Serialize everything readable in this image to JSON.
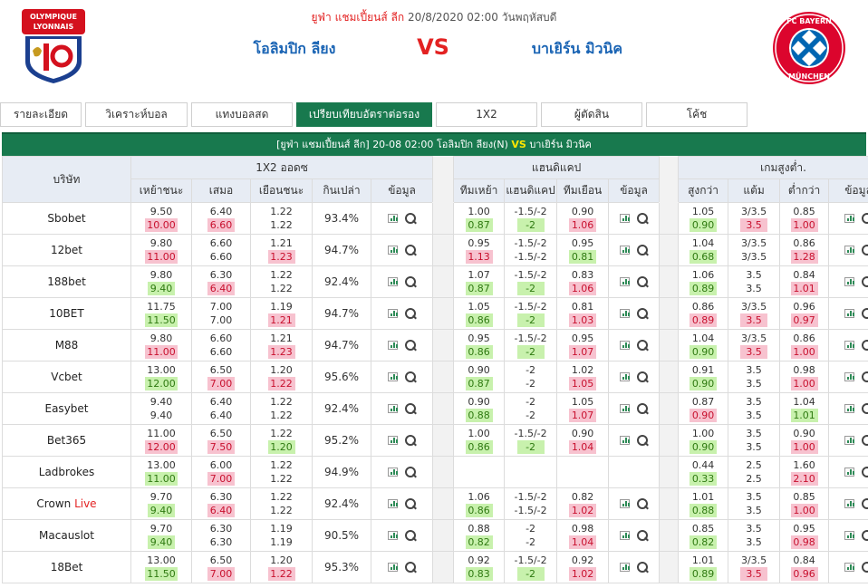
{
  "header": {
    "competition": "ยูฟ่า แชมเปี้ยนส์ ลีก",
    "datetime": "20/8/2020 02:00",
    "weekday": "วันพฤหัสบดี",
    "home_team": "โอลิมปิก ลียง",
    "vs": "VS",
    "away_team": "บาเยิร์น มิวนิค",
    "home_logo_text": "OLYMPIQUE LYONNAIS",
    "away_logo_text": "FC BAYERN MÜNCHEN"
  },
  "tabs": [
    {
      "label": "รายละเอียด",
      "active": false
    },
    {
      "label": "วิเคราะห์บอล",
      "active": false
    },
    {
      "label": "แทงบอลสด",
      "active": false
    },
    {
      "label": "เปรียบเทียบอัตราต่อรอง",
      "active": true
    },
    {
      "label": "1X2",
      "active": false
    },
    {
      "label": "ผู้ตัดสิน",
      "active": false
    },
    {
      "label": "โค้ช",
      "active": false
    }
  ],
  "table": {
    "title": {
      "competition": "[ยูฟ่า แชมเปี้ยนส์ ลีก]",
      "datetime": "20-08 02:00",
      "home": "โอลิมปิก ลียง(N)",
      "vs": "VS",
      "away": "บาเยิร์น มิวนิค"
    },
    "headers": {
      "company": "บริษัท",
      "group_1x2": "1X2 ออดซ",
      "group_handicap": "แฮนดิแคป",
      "group_ou": "เกมสูงต่ำ.",
      "home_win": "เหย้าชนะ",
      "draw": "เสมอ",
      "away_win": "เยือนชนะ",
      "payout": "กินเปล่า",
      "info": "ข้อมูล",
      "home_team": "ทีมเหย้า",
      "handicap": "แฮนดิแคป",
      "away_team": "ทีมเยือน",
      "over": "สูงกว่า",
      "goals": "แต้ม",
      "under": "ต่ำกว่า"
    },
    "rows": [
      {
        "company": "Sbobet",
        "live": "",
        "x12": [
          [
            "9.50",
            "10.00",
            "up"
          ],
          [
            "6.40",
            "6.60",
            "up"
          ],
          [
            "1.22",
            "1.22",
            ""
          ]
        ],
        "payout": "93.4%",
        "hdp": [
          [
            "1.00",
            "0.87",
            "down"
          ],
          [
            "-1.5/-2",
            "-2",
            "down"
          ],
          [
            "0.90",
            "1.06",
            "up"
          ]
        ],
        "ou": [
          [
            "1.05",
            "0.90",
            "down"
          ],
          [
            "3/3.5",
            "3.5",
            "up"
          ],
          [
            "0.85",
            "1.00",
            "up"
          ]
        ]
      },
      {
        "company": "12bet",
        "live": "",
        "x12": [
          [
            "9.80",
            "11.00",
            "up"
          ],
          [
            "6.60",
            "6.60",
            ""
          ],
          [
            "1.21",
            "1.23",
            "up"
          ]
        ],
        "payout": "94.7%",
        "hdp": [
          [
            "0.95",
            "1.13",
            "up"
          ],
          [
            "-1.5/-2",
            "-1.5/-2",
            ""
          ],
          [
            "0.95",
            "0.81",
            "down"
          ]
        ],
        "ou": [
          [
            "1.04",
            "0.68",
            "down"
          ],
          [
            "3/3.5",
            "3/3.5",
            ""
          ],
          [
            "0.86",
            "1.28",
            "up"
          ]
        ]
      },
      {
        "company": "188bet",
        "live": "",
        "x12": [
          [
            "9.80",
            "9.40",
            "down"
          ],
          [
            "6.30",
            "6.40",
            "up"
          ],
          [
            "1.22",
            "1.22",
            ""
          ]
        ],
        "payout": "92.4%",
        "hdp": [
          [
            "1.07",
            "0.87",
            "down"
          ],
          [
            "-1.5/-2",
            "-2",
            "down"
          ],
          [
            "0.83",
            "1.06",
            "up"
          ]
        ],
        "ou": [
          [
            "1.06",
            "0.89",
            "down"
          ],
          [
            "3.5",
            "3.5",
            ""
          ],
          [
            "0.84",
            "1.01",
            "up"
          ]
        ]
      },
      {
        "company": "10BET",
        "live": "",
        "x12": [
          [
            "11.75",
            "11.50",
            "down"
          ],
          [
            "7.00",
            "7.00",
            ""
          ],
          [
            "1.19",
            "1.21",
            "up"
          ]
        ],
        "payout": "94.7%",
        "hdp": [
          [
            "1.05",
            "0.86",
            "down"
          ],
          [
            "-1.5/-2",
            "-2",
            "down"
          ],
          [
            "0.81",
            "1.03",
            "up"
          ]
        ],
        "ou": [
          [
            "0.86",
            "0.89",
            "up"
          ],
          [
            "3/3.5",
            "3.5",
            "up"
          ],
          [
            "0.96",
            "0.97",
            "up"
          ]
        ]
      },
      {
        "company": "M88",
        "live": "",
        "x12": [
          [
            "9.80",
            "11.00",
            "up"
          ],
          [
            "6.60",
            "6.60",
            ""
          ],
          [
            "1.21",
            "1.23",
            "up"
          ]
        ],
        "payout": "94.7%",
        "hdp": [
          [
            "0.95",
            "0.86",
            "down"
          ],
          [
            "-1.5/-2",
            "-2",
            "down"
          ],
          [
            "0.95",
            "1.07",
            "up"
          ]
        ],
        "ou": [
          [
            "1.04",
            "0.90",
            "down"
          ],
          [
            "3/3.5",
            "3.5",
            "up"
          ],
          [
            "0.86",
            "1.00",
            "up"
          ]
        ]
      },
      {
        "company": "Vcbet",
        "live": "",
        "x12": [
          [
            "13.00",
            "12.00",
            "down"
          ],
          [
            "6.50",
            "7.00",
            "up"
          ],
          [
            "1.20",
            "1.22",
            "up"
          ]
        ],
        "payout": "95.6%",
        "hdp": [
          [
            "0.90",
            "0.87",
            "down"
          ],
          [
            "-2",
            "-2",
            ""
          ],
          [
            "1.02",
            "1.05",
            "up"
          ]
        ],
        "ou": [
          [
            "0.91",
            "0.90",
            "down"
          ],
          [
            "3.5",
            "3.5",
            ""
          ],
          [
            "0.98",
            "1.00",
            "up"
          ]
        ]
      },
      {
        "company": "Easybet",
        "live": "",
        "x12": [
          [
            "9.40",
            "9.40",
            ""
          ],
          [
            "6.40",
            "6.40",
            ""
          ],
          [
            "1.22",
            "1.22",
            ""
          ]
        ],
        "payout": "92.4%",
        "hdp": [
          [
            "0.90",
            "0.88",
            "down"
          ],
          [
            "-2",
            "-2",
            ""
          ],
          [
            "1.05",
            "1.07",
            "up"
          ]
        ],
        "ou": [
          [
            "0.87",
            "0.90",
            "up"
          ],
          [
            "3.5",
            "3.5",
            ""
          ],
          [
            "1.04",
            "1.01",
            "down"
          ]
        ]
      },
      {
        "company": "Bet365",
        "live": "",
        "x12": [
          [
            "11.00",
            "12.00",
            "up"
          ],
          [
            "6.50",
            "7.50",
            "up"
          ],
          [
            "1.22",
            "1.20",
            "down"
          ]
        ],
        "payout": "95.2%",
        "hdp": [
          [
            "1.00",
            "0.86",
            "down"
          ],
          [
            "-1.5/-2",
            "-2",
            "down"
          ],
          [
            "0.90",
            "1.04",
            "up"
          ]
        ],
        "ou": [
          [
            "1.00",
            "0.90",
            "down"
          ],
          [
            "3.5",
            "3.5",
            ""
          ],
          [
            "0.90",
            "1.00",
            "up"
          ]
        ]
      },
      {
        "company": "Ladbrokes",
        "live": "",
        "x12": [
          [
            "13.00",
            "11.00",
            "down"
          ],
          [
            "6.00",
            "7.00",
            "up"
          ],
          [
            "1.22",
            "1.22",
            ""
          ]
        ],
        "payout": "94.9%",
        "hdp": null,
        "ou": [
          [
            "0.44",
            "0.33",
            "down"
          ],
          [
            "2.5",
            "2.5",
            ""
          ],
          [
            "1.60",
            "2.10",
            "up"
          ]
        ]
      },
      {
        "company": "Crown",
        "live": "Live",
        "x12": [
          [
            "9.70",
            "9.40",
            "down"
          ],
          [
            "6.30",
            "6.40",
            "up"
          ],
          [
            "1.22",
            "1.22",
            ""
          ]
        ],
        "payout": "92.4%",
        "hdp": [
          [
            "1.06",
            "0.86",
            "down"
          ],
          [
            "-1.5/-2",
            "-1.5/-2",
            ""
          ],
          [
            "0.82",
            "1.02",
            "up"
          ]
        ],
        "ou": [
          [
            "1.01",
            "0.88",
            "down"
          ],
          [
            "3.5",
            "3.5",
            ""
          ],
          [
            "0.85",
            "1.00",
            "up"
          ]
        ]
      },
      {
        "company": "Macauslot",
        "live": "",
        "x12": [
          [
            "9.70",
            "9.40",
            "down"
          ],
          [
            "6.30",
            "6.30",
            ""
          ],
          [
            "1.19",
            "1.19",
            ""
          ]
        ],
        "payout": "90.5%",
        "hdp": [
          [
            "0.88",
            "0.82",
            "down"
          ],
          [
            "-2",
            "-2",
            ""
          ],
          [
            "0.98",
            "1.04",
            "up"
          ]
        ],
        "ou": [
          [
            "0.85",
            "0.82",
            "down"
          ],
          [
            "3.5",
            "3.5",
            ""
          ],
          [
            "0.95",
            "0.98",
            "up"
          ]
        ]
      },
      {
        "company": "18Bet",
        "live": "",
        "x12": [
          [
            "13.00",
            "11.50",
            "down"
          ],
          [
            "6.50",
            "7.00",
            "up"
          ],
          [
            "1.20",
            "1.22",
            "up"
          ]
        ],
        "payout": "95.3%",
        "hdp": [
          [
            "0.92",
            "0.83",
            "down"
          ],
          [
            "-1.5/-2",
            "-2",
            "down"
          ],
          [
            "0.92",
            "1.02",
            "up"
          ]
        ],
        "ou": [
          [
            "1.01",
            "0.89",
            "down"
          ],
          [
            "3/3.5",
            "3.5",
            "up"
          ],
          [
            "0.84",
            "0.96",
            "up"
          ]
        ]
      }
    ]
  },
  "colors": {
    "accent_green": "#18794e",
    "odds_up_bg": "#f7c2cf",
    "odds_down_bg": "#c8f1ad",
    "team_blue": "#1a64b4",
    "vs_red": "#e32222"
  },
  "icons": {
    "chart": "chart-icon",
    "search": "search-icon"
  }
}
